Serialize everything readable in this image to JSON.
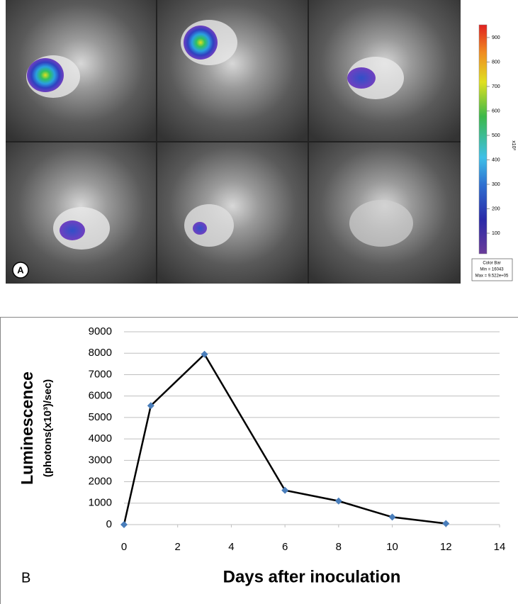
{
  "panel_a": {
    "label": "A",
    "colorbar": {
      "lim": [
        16,
        952
      ],
      "ticks": [
        100,
        200,
        300,
        400,
        500,
        600,
        700,
        800,
        900
      ],
      "unit": "x10³",
      "title": "Color Bar",
      "min_label": "Min = 16043",
      "max_label": "Max = 9.522e+05"
    }
  },
  "chart_data": {
    "type": "line",
    "panel_label": "B",
    "ylabel": "Luminescence",
    "ylabel_sub": "(photons(x10³)/sec)",
    "xlabel": "Days after inoculation",
    "x": [
      0,
      1,
      3,
      6,
      8,
      10,
      12
    ],
    "values": [
      0,
      5550,
      7950,
      1600,
      1100,
      350,
      50
    ],
    "color": "#4a7ebb",
    "line_color": "#000000",
    "xlim": [
      0,
      14
    ],
    "xticks": [
      0,
      2,
      4,
      6,
      8,
      10,
      12,
      14
    ],
    "ylim": [
      0,
      9000
    ],
    "yticks": [
      0,
      1000,
      2000,
      3000,
      4000,
      5000,
      6000,
      7000,
      8000,
      9000
    ],
    "grid": true
  }
}
